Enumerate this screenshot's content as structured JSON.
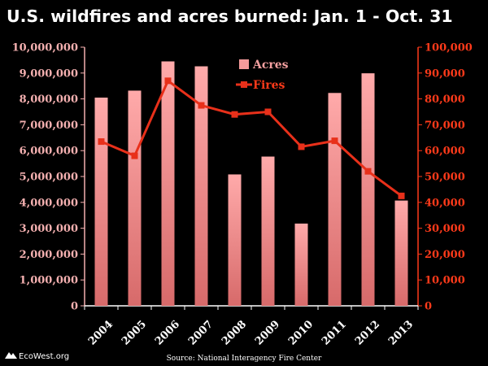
{
  "chart_data": {
    "type": "bar",
    "title": "U.S. wildfires and acres burned: Jan. 1 - Oct. 31",
    "categories": [
      "2004",
      "2005",
      "2006",
      "2007",
      "2008",
      "2009",
      "2010",
      "2011",
      "2012",
      "2013"
    ],
    "series": [
      {
        "name": "Acres",
        "type": "bar",
        "axis": "left",
        "color": "#f59a9a",
        "values": [
          8050000,
          8320000,
          9450000,
          9260000,
          5080000,
          5770000,
          3180000,
          8230000,
          8990000,
          4070000
        ]
      },
      {
        "name": "Fires",
        "type": "line",
        "axis": "right",
        "color": "#e8301a",
        "values": [
          63500,
          58000,
          87000,
          77500,
          74000,
          75000,
          61500,
          63800,
          52000,
          42500
        ]
      }
    ],
    "y_left": {
      "min": 0,
      "max": 10000000,
      "ticks": [
        "0",
        "1,000,000",
        "2,000,000",
        "3,000,000",
        "4,000,000",
        "5,000,000",
        "6,000,000",
        "7,000,000",
        "8,000,000",
        "9,000,000",
        "10,000,000"
      ]
    },
    "y_right": {
      "min": 0,
      "max": 100000,
      "ticks": [
        "0",
        "10,000",
        "20,000",
        "30,000",
        "40,000",
        "50,000",
        "60,000",
        "70,000",
        "80,000",
        "90,000",
        "100,000"
      ]
    },
    "legend": {
      "placement": "top-center"
    },
    "grid": false
  },
  "footer": {
    "source": "Source: National Interagency Fire Center",
    "brand": "EcoWest.org"
  }
}
